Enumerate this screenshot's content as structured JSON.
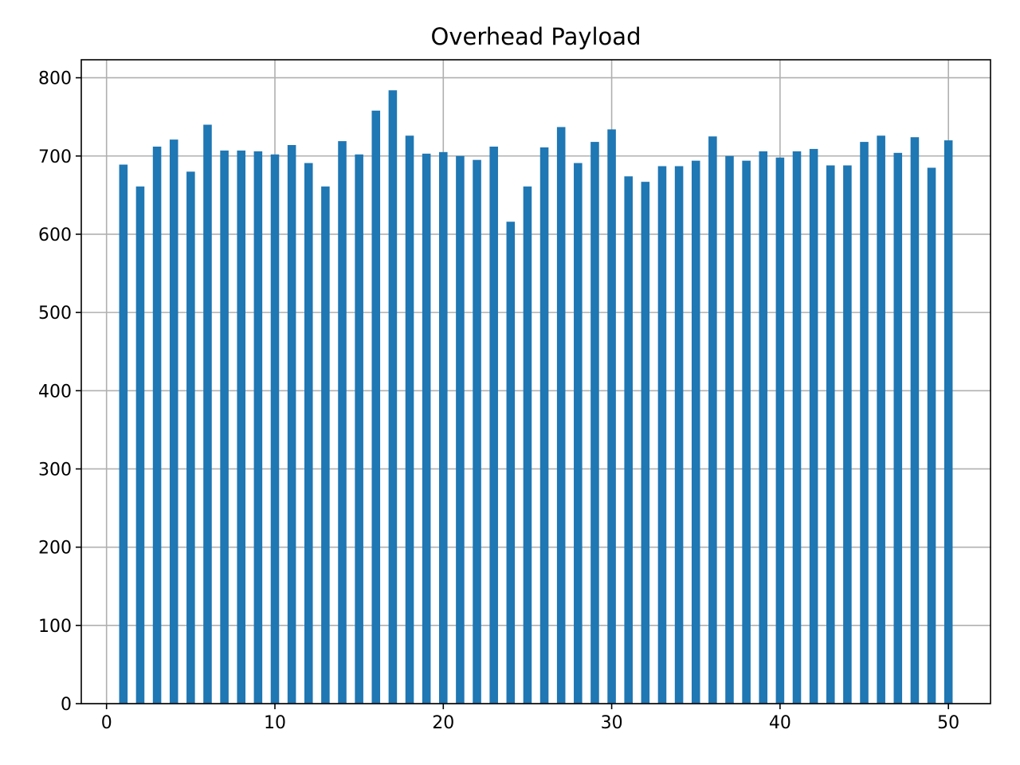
{
  "chart_data": {
    "type": "bar",
    "title": "Overhead Payload",
    "xlabel": "",
    "ylabel": "",
    "xlim": [
      -1.5,
      52.5
    ],
    "ylim": [
      0,
      823
    ],
    "grid": true,
    "bar_width": 0.5,
    "bar_color": "#1f77b4",
    "x_ticks": [
      0,
      10,
      20,
      30,
      40,
      50
    ],
    "y_ticks": [
      0,
      100,
      200,
      300,
      400,
      500,
      600,
      700,
      800
    ],
    "x": [
      1,
      2,
      3,
      4,
      5,
      6,
      7,
      8,
      9,
      10,
      11,
      12,
      13,
      14,
      15,
      16,
      17,
      18,
      19,
      20,
      21,
      22,
      23,
      24,
      25,
      26,
      27,
      28,
      29,
      30,
      31,
      32,
      33,
      34,
      35,
      36,
      37,
      38,
      39,
      40,
      41,
      42,
      43,
      44,
      45,
      46,
      47,
      48,
      49,
      50
    ],
    "values": [
      689,
      661,
      712,
      721,
      680,
      740,
      707,
      707,
      706,
      702,
      714,
      691,
      661,
      719,
      702,
      758,
      784,
      726,
      703,
      705,
      700,
      695,
      712,
      616,
      661,
      711,
      737,
      691,
      718,
      734,
      674,
      667,
      687,
      687,
      694,
      725,
      700,
      694,
      706,
      698,
      706,
      709,
      688,
      688,
      718,
      726,
      704,
      724,
      685,
      720
    ]
  }
}
